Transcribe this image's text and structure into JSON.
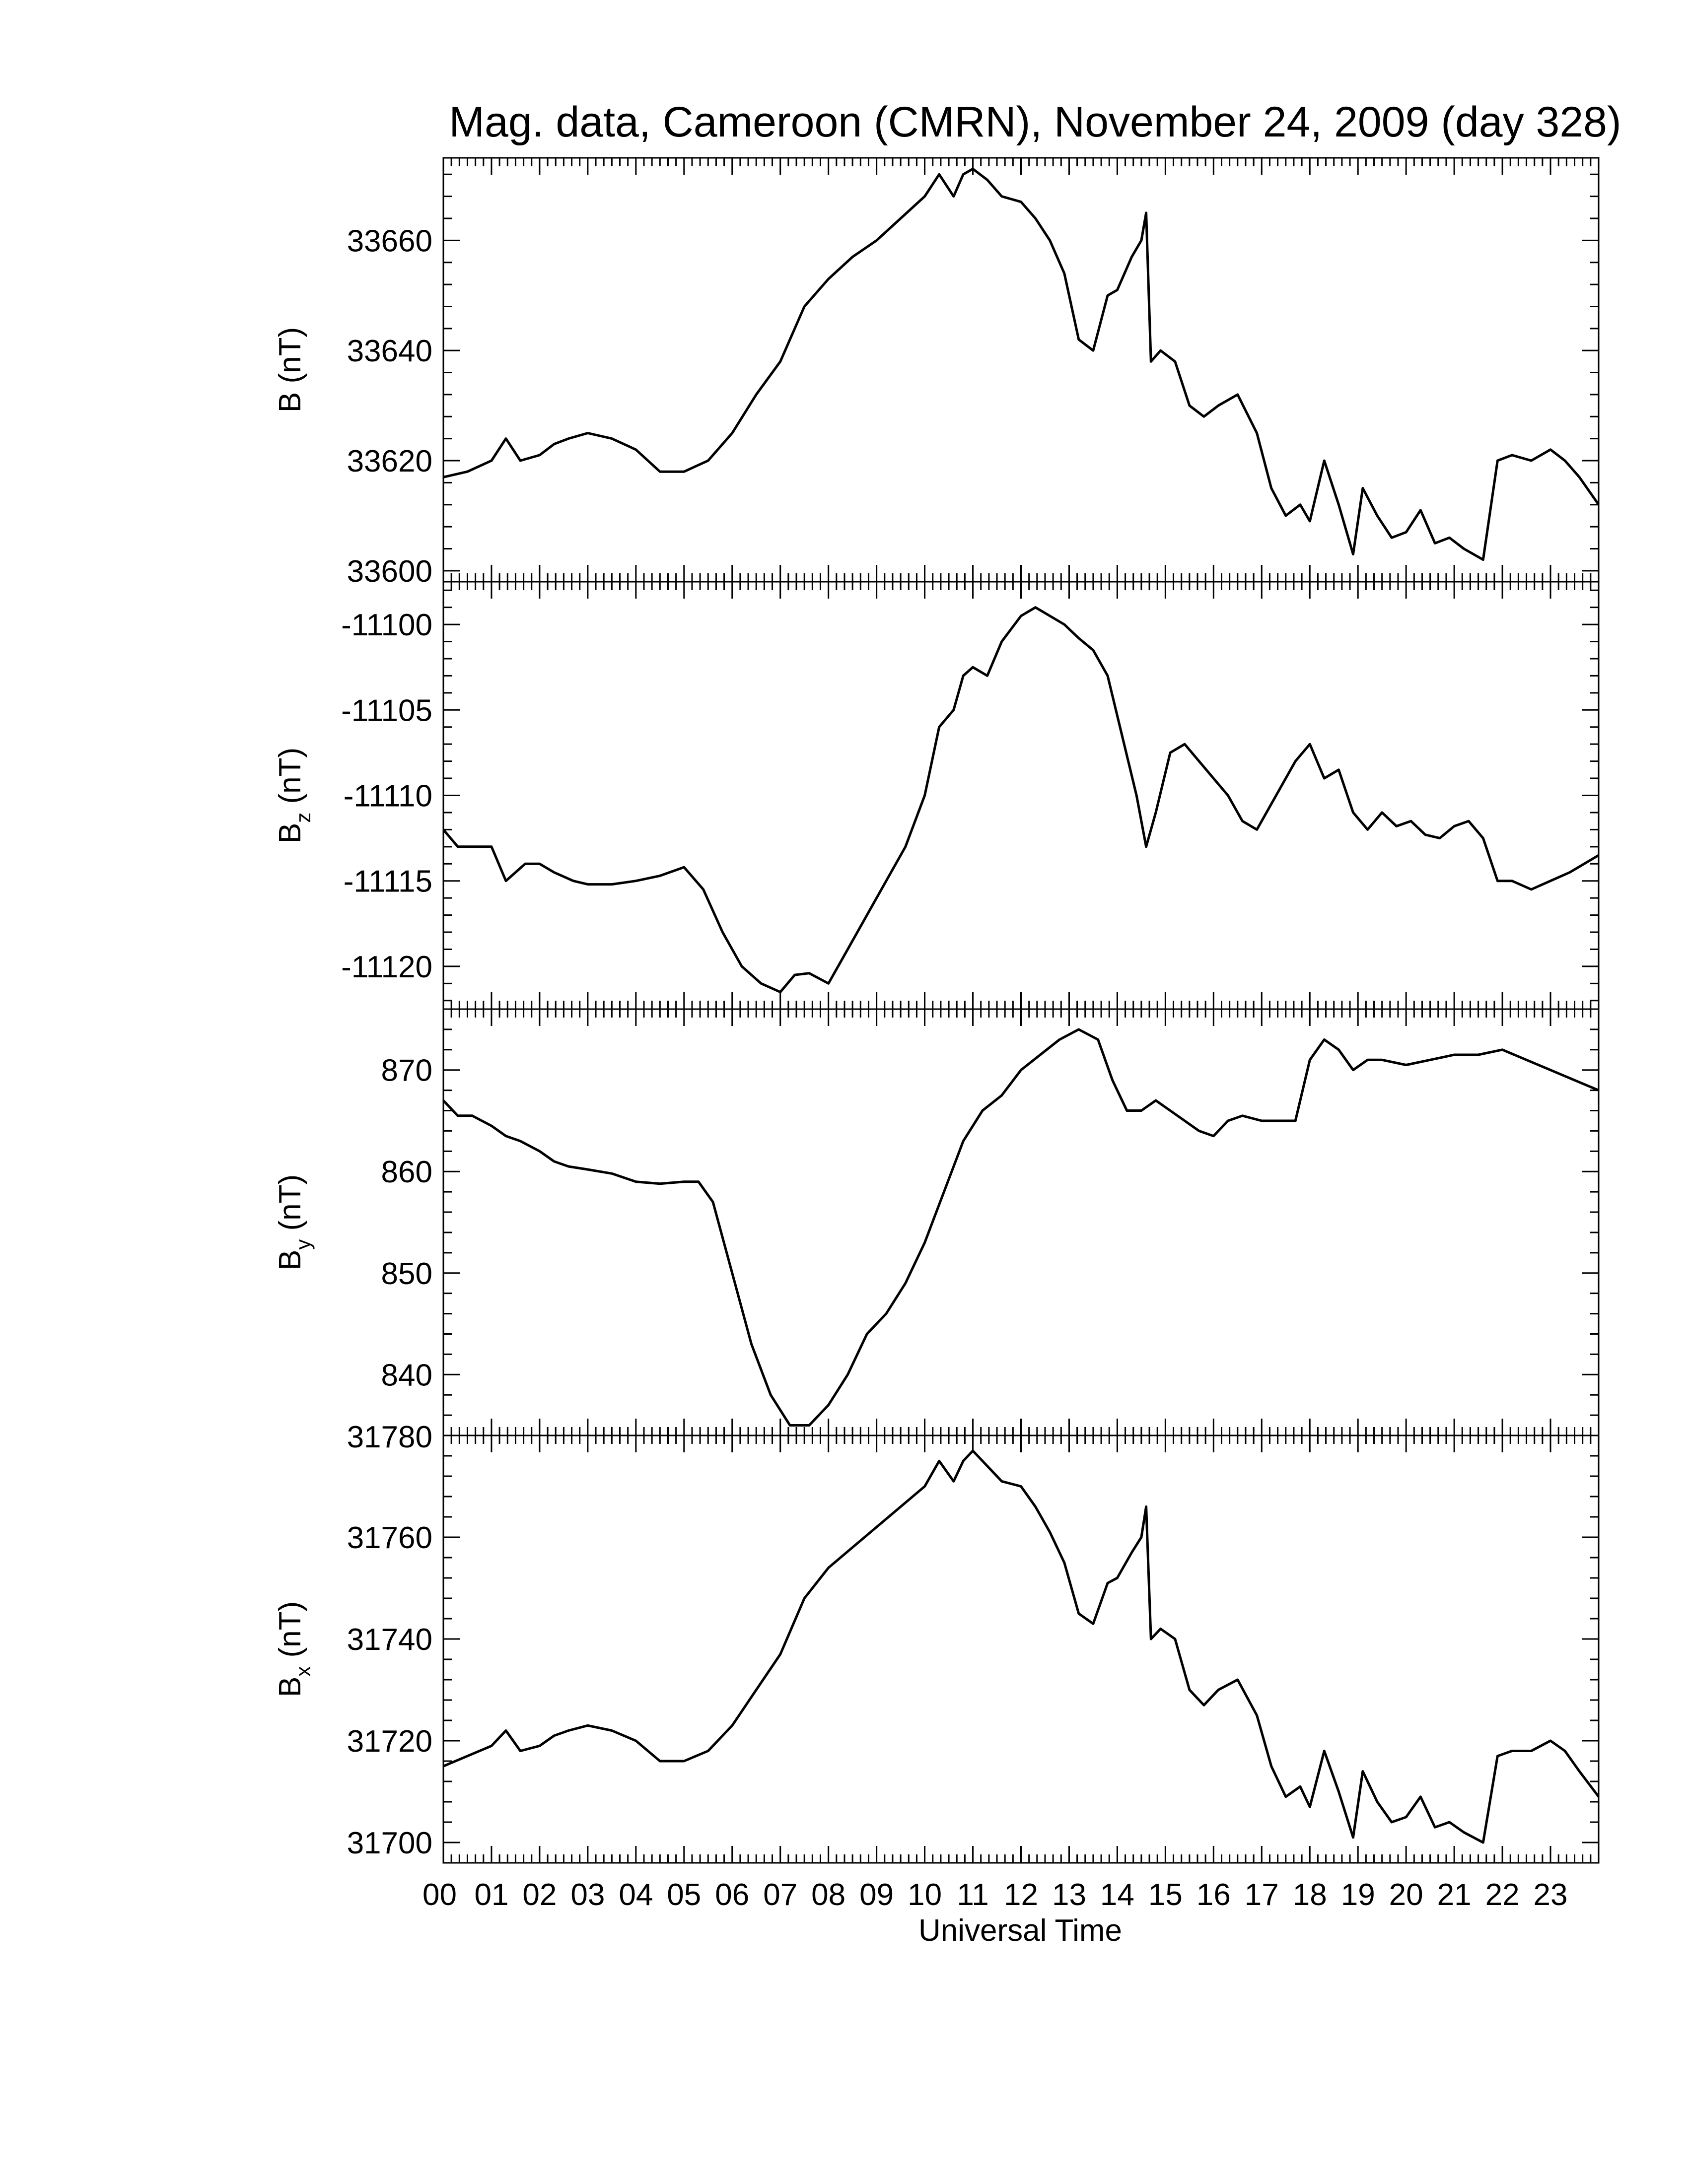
{
  "chart_data": {
    "type": "line",
    "title": "Mag. data, Cameroon (CMRN), November 24, 2009 (day 328)",
    "xlabel": "Universal Time",
    "xlim": [
      0,
      24
    ],
    "x_tick_labels": [
      "00",
      "01",
      "02",
      "03",
      "04",
      "05",
      "06",
      "07",
      "08",
      "09",
      "10",
      "11",
      "12",
      "13",
      "14",
      "15",
      "16",
      "17",
      "18",
      "19",
      "20",
      "21",
      "22",
      "23"
    ],
    "panels": [
      {
        "id": "B",
        "ylabel": "B (nT)",
        "ylabel_main": "B",
        "ylabel_sub": "",
        "ylabel_unit": "(nT)",
        "ylim": [
          33598,
          33675
        ],
        "yticks": [
          33600,
          33620,
          33640,
          33660
        ],
        "series": [
          {
            "x": [
              0,
              0.5,
              1,
              1.3,
              1.6,
              2,
              2.3,
              2.6,
              3,
              3.5,
              4,
              4.5,
              5,
              5.5,
              6,
              6.5,
              7,
              7.5,
              8,
              8.5,
              9,
              9.5,
              10,
              10.3,
              10.6,
              10.8,
              11,
              11.3,
              11.6,
              12,
              12.3,
              12.6,
              12.9,
              13.2,
              13.5,
              13.8,
              14,
              14.3,
              14.5,
              14.6,
              14.7,
              14.9,
              15.2,
              15.5,
              15.8,
              16.1,
              16.5,
              16.9,
              17.2,
              17.5,
              17.8,
              18,
              18.3,
              18.6,
              18.9,
              19.1,
              19.4,
              19.7,
              20,
              20.3,
              20.6,
              20.9,
              21.2,
              21.6,
              21.9,
              22.2,
              22.6,
              23,
              23.3,
              23.6,
              24
            ],
            "y": [
              33617,
              33618,
              33620,
              33624,
              33620,
              33621,
              33623,
              33624,
              33625,
              33624,
              33622,
              33618,
              33618,
              33620,
              33625,
              33632,
              33638,
              33648,
              33653,
              33657,
              33660,
              33664,
              33668,
              33672,
              33668,
              33672,
              33673,
              33671,
              33668,
              33667,
              33664,
              33660,
              33654,
              33642,
              33640,
              33650,
              33651,
              33657,
              33660,
              33665,
              33638,
              33640,
              33638,
              33630,
              33628,
              33630,
              33632,
              33625,
              33615,
              33610,
              33612,
              33609,
              33620,
              33612,
              33603,
              33615,
              33610,
              33606,
              33607,
              33611,
              33605,
              33606,
              33604,
              33602,
              33620,
              33621,
              33620,
              33622,
              33620,
              33617,
              33612
            ]
          }
        ]
      },
      {
        "id": "Bz",
        "ylabel": "Bz (nT)",
        "ylabel_main": "B",
        "ylabel_sub": "z",
        "ylabel_unit": "(nT)",
        "ylim": [
          -11122.5,
          -11097.5
        ],
        "yticks": [
          -11120,
          -11115,
          -11110,
          -11105,
          -11100
        ],
        "series": [
          {
            "x": [
              0,
              0.3,
              0.6,
              1,
              1.3,
              1.7,
              2,
              2.3,
              2.7,
              3,
              3.5,
              4,
              4.5,
              5,
              5.4,
              5.8,
              6.2,
              6.6,
              7,
              7.3,
              7.6,
              8,
              8.4,
              8.8,
              9.2,
              9.6,
              10,
              10.3,
              10.6,
              10.8,
              11,
              11.3,
              11.6,
              12,
              12.3,
              12.6,
              12.9,
              13.2,
              13.5,
              13.8,
              14.1,
              14.4,
              14.6,
              14.8,
              15.1,
              15.4,
              15.7,
              16,
              16.3,
              16.6,
              16.9,
              17.3,
              17.7,
              18,
              18.3,
              18.6,
              18.9,
              19.2,
              19.5,
              19.8,
              20.1,
              20.4,
              20.7,
              21,
              21.3,
              21.6,
              21.9,
              22.2,
              22.6,
              23,
              23.4,
              24
            ],
            "y": [
              -11112,
              -11113,
              -11113,
              -11113,
              -11115,
              -11114,
              -11114,
              -11114.5,
              -11115,
              -11115.2,
              -11115.2,
              -11115,
              -11114.7,
              -11114.2,
              -11115.5,
              -11118,
              -11120,
              -11121,
              -11121.5,
              -11120.5,
              -11120.4,
              -11121,
              -11119,
              -11117,
              -11115,
              -11113,
              -11110,
              -11106,
              -11105,
              -11103,
              -11102.5,
              -11103,
              -11101,
              -11099.5,
              -11099,
              -11099.5,
              -11100,
              -11100.8,
              -11101.5,
              -11103,
              -11106.5,
              -11110,
              -11113,
              -11111,
              -11107.5,
              -11107,
              -11108,
              -11109,
              -11110,
              -11111.5,
              -11112,
              -11110,
              -11108,
              -11107,
              -11109,
              -11108.5,
              -11111,
              -11112,
              -11111,
              -11111.8,
              -11111.5,
              -11112.3,
              -11112.5,
              -11111.8,
              -11111.5,
              -11112.5,
              -11115,
              -11115,
              -11115.5,
              -11115,
              -11114.5,
              -11113.5
            ]
          }
        ]
      },
      {
        "id": "By",
        "ylabel": "By (nT)",
        "ylabel_main": "B",
        "ylabel_sub": "y",
        "ylabel_unit": "(nT)",
        "ylim": [
          834,
          876
        ],
        "yticks": [
          840,
          850,
          860,
          870
        ],
        "series": [
          {
            "x": [
              0,
              0.3,
              0.6,
              1,
              1.3,
              1.6,
              2,
              2.3,
              2.6,
              3,
              3.5,
              4,
              4.5,
              5,
              5.3,
              5.6,
              6,
              6.4,
              6.8,
              7.2,
              7.6,
              8,
              8.4,
              8.8,
              9.2,
              9.6,
              10,
              10.4,
              10.8,
              11.2,
              11.6,
              12,
              12.4,
              12.8,
              13.2,
              13.6,
              13.9,
              14.2,
              14.5,
              14.8,
              15.1,
              15.4,
              15.7,
              16,
              16.3,
              16.6,
              17,
              17.4,
              17.7,
              18,
              18.3,
              18.6,
              18.9,
              19.2,
              19.5,
              20,
              20.5,
              21,
              21.5,
              22,
              22.5,
              23,
              23.5,
              24
            ],
            "y": [
              867,
              865.5,
              865.5,
              864.5,
              863.5,
              863,
              862,
              861,
              860.5,
              860.2,
              859.8,
              859,
              858.8,
              859,
              859,
              857,
              850,
              843,
              838,
              835,
              835,
              837,
              840,
              844,
              846,
              849,
              853,
              858,
              863,
              866,
              867.5,
              870,
              871.5,
              873,
              874,
              873,
              869,
              866,
              866,
              867,
              866,
              865,
              864,
              863.5,
              865,
              865.5,
              865,
              865,
              865,
              871,
              873,
              872,
              870,
              871,
              871,
              870.5,
              871,
              871.5,
              871.5,
              872,
              871,
              870,
              869,
              868
            ]
          }
        ]
      },
      {
        "id": "Bx",
        "ylabel": "Bx (nT)",
        "ylabel_main": "B",
        "ylabel_sub": "x",
        "ylabel_unit": "(nT)",
        "ylim": [
          31696,
          31780
        ],
        "yticks": [
          31700,
          31720,
          31740,
          31760,
          31780
        ],
        "series": [
          {
            "x": [
              0,
              0.5,
              1,
              1.3,
              1.6,
              2,
              2.3,
              2.6,
              3,
              3.5,
              4,
              4.5,
              5,
              5.5,
              6,
              6.5,
              7,
              7.5,
              8,
              8.5,
              9,
              9.5,
              10,
              10.3,
              10.6,
              10.8,
              11,
              11.3,
              11.6,
              12,
              12.3,
              12.6,
              12.9,
              13.2,
              13.5,
              13.8,
              14,
              14.3,
              14.5,
              14.6,
              14.7,
              14.9,
              15.2,
              15.5,
              15.8,
              16.1,
              16.5,
              16.9,
              17.2,
              17.5,
              17.8,
              18,
              18.3,
              18.6,
              18.9,
              19.1,
              19.4,
              19.7,
              20,
              20.3,
              20.6,
              20.9,
              21.2,
              21.6,
              21.9,
              22.2,
              22.6,
              23,
              23.3,
              23.6,
              24
            ],
            "y": [
              31715,
              31717,
              31719,
              31722,
              31718,
              31719,
              31721,
              31722,
              31723,
              31722,
              31720,
              31716,
              31716,
              31718,
              31723,
              31730,
              31737,
              31748,
              31754,
              31758,
              31762,
              31766,
              31770,
              31775,
              31771,
              31775,
              31777,
              31774,
              31771,
              31770,
              31766,
              31761,
              31755,
              31745,
              31743,
              31751,
              31752,
              31757,
              31760,
              31766,
              31740,
              31742,
              31740,
              31730,
              31727,
              31730,
              31732,
              31725,
              31715,
              31709,
              31711,
              31707,
              31718,
              31710,
              31701,
              31714,
              31708,
              31704,
              31705,
              31709,
              31703,
              31704,
              31702,
              31700,
              31717,
              31718,
              31718,
              31720,
              31718,
              31714,
              31709
            ]
          }
        ]
      }
    ]
  }
}
